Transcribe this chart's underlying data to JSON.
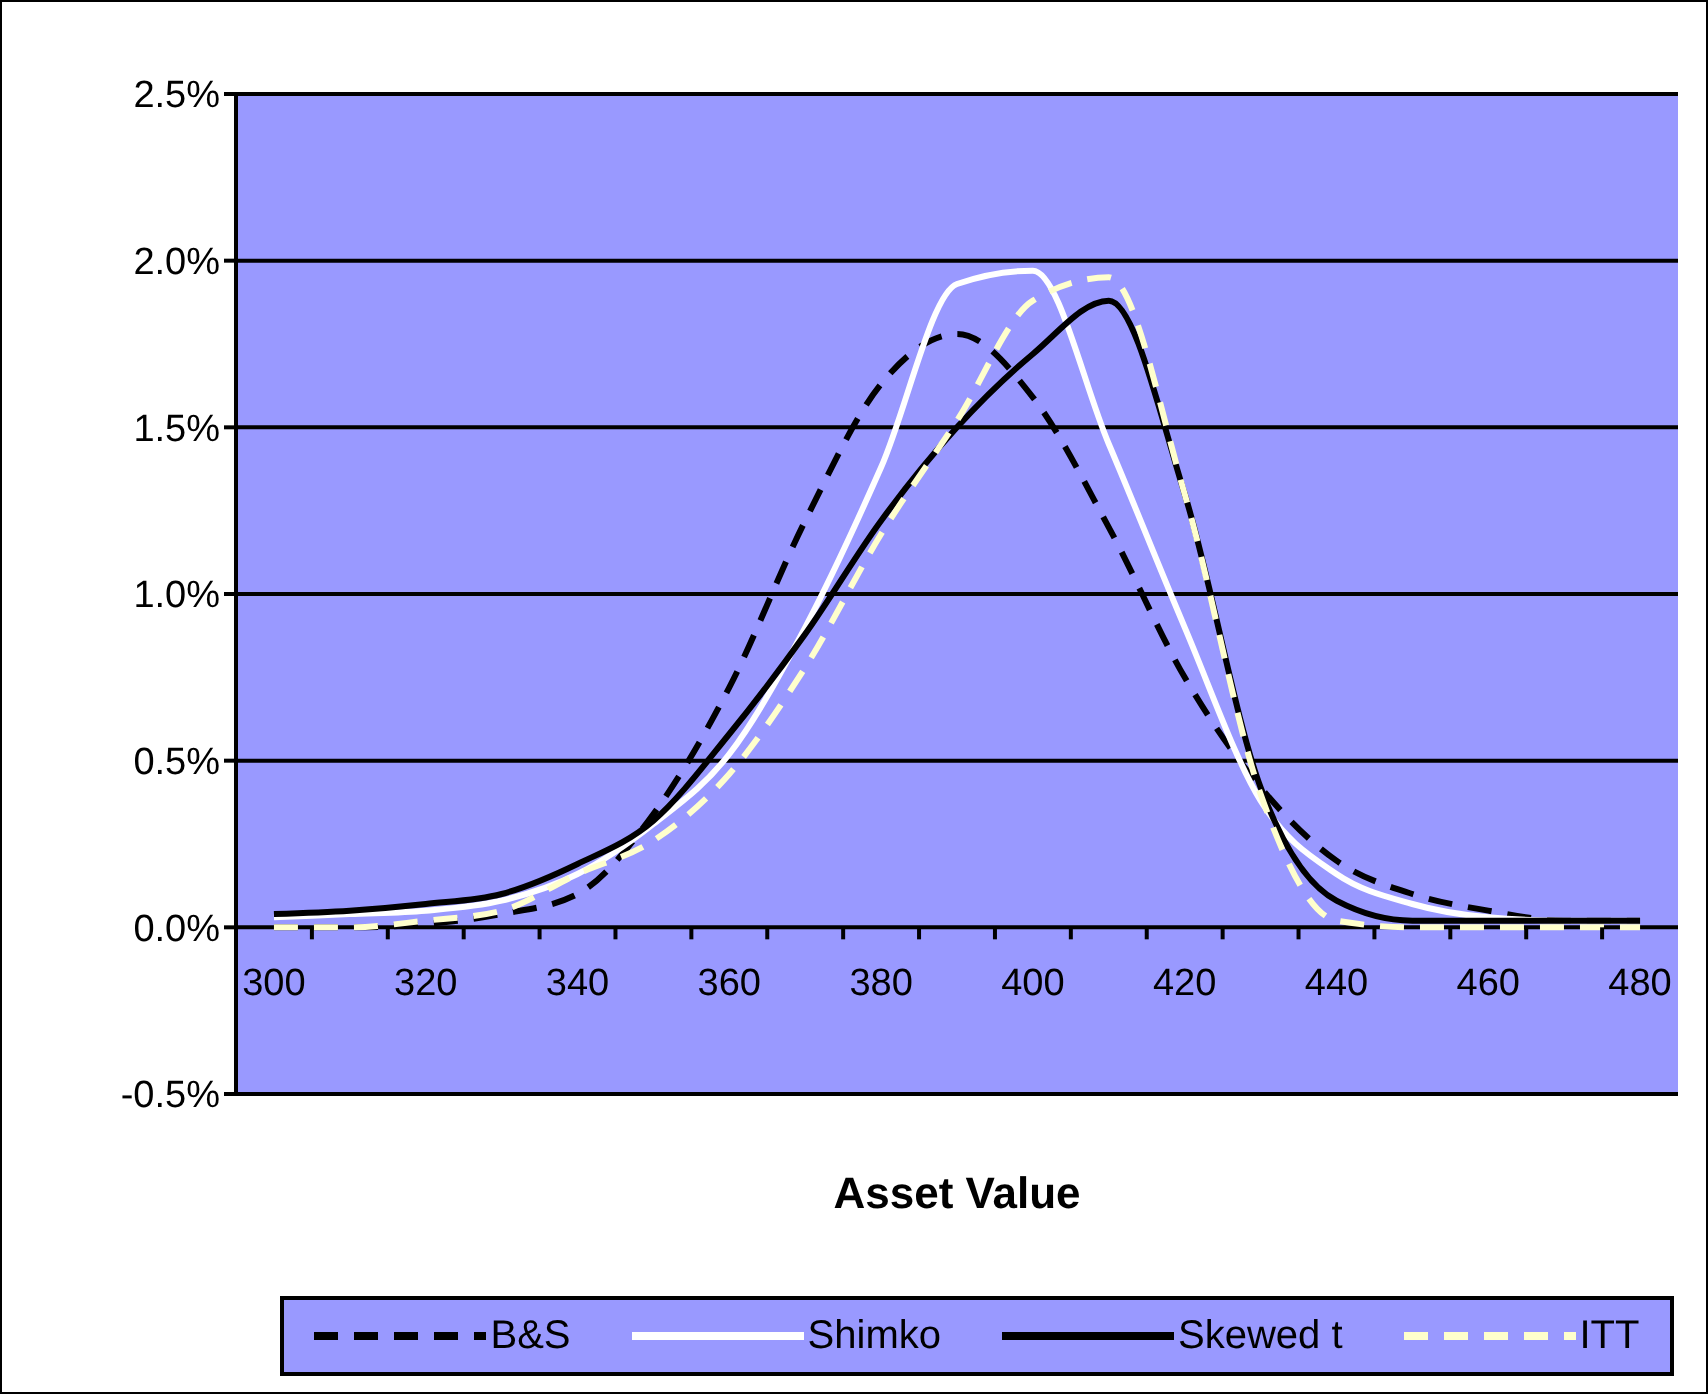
{
  "chart_data": {
    "type": "line",
    "xlabel": "Asset Value",
    "categories": [
      "300",
      null,
      "320",
      null,
      "340",
      null,
      "360",
      null,
      "380",
      null,
      "400",
      null,
      "420",
      null,
      "440",
      null,
      "460",
      null,
      "480"
    ],
    "series": [
      {
        "name": "B&S",
        "color": "#000000",
        "line_style": "dashed",
        "values": [
          0,
          0,
          0.01,
          0.04,
          0.1,
          0.34,
          0.72,
          1.22,
          1.63,
          1.78,
          1.59,
          1.2,
          0.75,
          0.42,
          0.2,
          0.1,
          0.05,
          0.02,
          0.02
        ]
      },
      {
        "name": "Shimko",
        "color": "#ffffff",
        "line_style": "solid",
        "values": [
          0.03,
          0.04,
          0.05,
          0.08,
          0.16,
          0.31,
          0.52,
          0.9,
          1.38,
          1.93,
          1.97,
          1.45,
          0.9,
          0.38,
          0.16,
          0.07,
          0.03,
          0.02,
          0.02
        ]
      },
      {
        "name": "Skewed t",
        "color": "#000000",
        "line_style": "solid",
        "values": [
          0.04,
          0.05,
          0.07,
          0.1,
          0.19,
          0.32,
          0.58,
          0.88,
          1.22,
          1.5,
          1.72,
          1.88,
          1.3,
          0.42,
          0.08,
          0.02,
          0.02,
          0.02,
          0.02
        ]
      },
      {
        "name": "ITT",
        "color": "#ffffcc",
        "line_style": "dashed",
        "values": [
          0,
          0,
          0.02,
          0.05,
          0.16,
          0.26,
          0.46,
          0.78,
          1.18,
          1.52,
          1.88,
          1.95,
          1.3,
          0.4,
          0.02,
          0,
          0,
          0,
          0
        ]
      }
    ],
    "ylim": [
      -0.5,
      2.5
    ],
    "yticks": [
      {
        "value": -0.5,
        "label": "-0.5%"
      },
      {
        "value": 0,
        "label": "0.0%"
      },
      {
        "value": 0.5,
        "label": "0.5%"
      },
      {
        "value": 1,
        "label": "1.0%"
      },
      {
        "value": 1.5,
        "label": "1.5%"
      },
      {
        "value": 2,
        "label": "2.0%"
      },
      {
        "value": 2.5,
        "label": "2.5%"
      }
    ],
    "grid": "y",
    "legend": "bottom",
    "marker": "none"
  }
}
